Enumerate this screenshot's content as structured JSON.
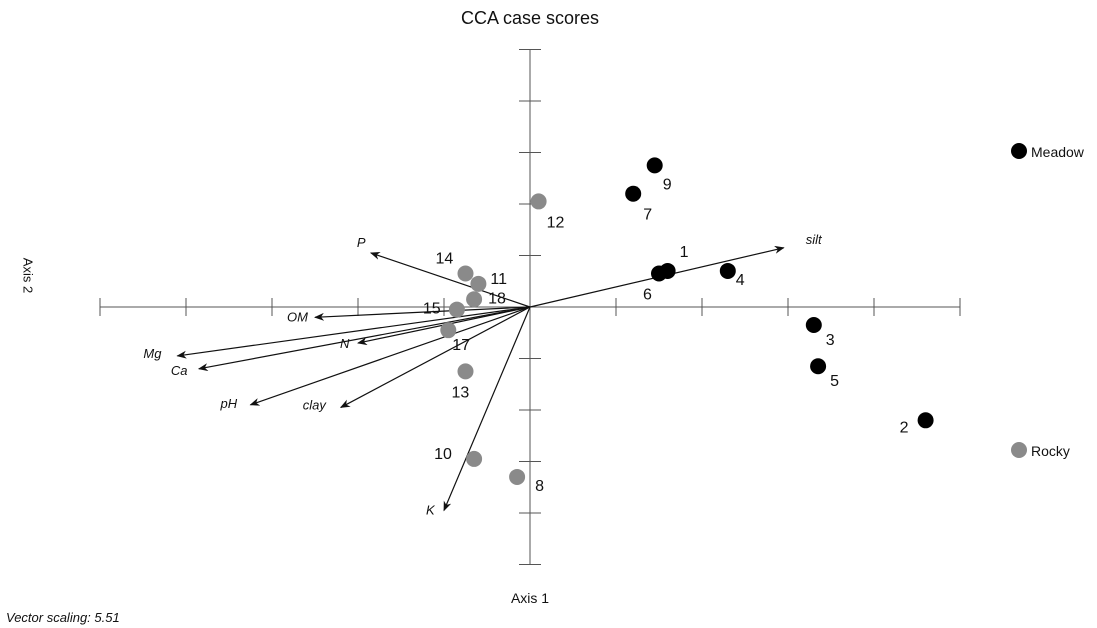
{
  "title": "CCA case scores",
  "x_axis_label": "Axis 1",
  "y_axis_label": "Axis 2",
  "footer": "Vector scaling: 5.51",
  "colors": {
    "meadow": "#000000",
    "rocky": "#8a8a8a",
    "axis": "#555555",
    "arrow": "#111111"
  },
  "chart_data": {
    "type": "scatter",
    "title": "CCA case scores",
    "xlabel": "Axis 1",
    "ylabel": "Axis 2",
    "xlim": [
      -5,
      5
    ],
    "ylim": [
      -5,
      5
    ],
    "grid": false,
    "legend": "right",
    "legend_entries": [
      {
        "name": "Meadow",
        "color": "#000000"
      },
      {
        "name": "Rocky",
        "color": "#8a8a8a"
      }
    ],
    "series": [
      {
        "name": "Meadow",
        "points": [
          {
            "label": "1",
            "x": 1.6,
            "y": 0.7
          },
          {
            "label": "2",
            "x": 4.6,
            "y": -2.2
          },
          {
            "label": "3",
            "x": 3.3,
            "y": -0.35
          },
          {
            "label": "4",
            "x": 2.3,
            "y": 0.7
          },
          {
            "label": "5",
            "x": 3.35,
            "y": -1.15
          },
          {
            "label": "6",
            "x": 1.5,
            "y": 0.65
          },
          {
            "label": "7",
            "x": 1.2,
            "y": 2.2
          },
          {
            "label": "9",
            "x": 1.45,
            "y": 2.75
          }
        ]
      },
      {
        "name": "Rocky",
        "points": [
          {
            "label": "8",
            "x": -0.15,
            "y": -3.3
          },
          {
            "label": "10",
            "x": -0.65,
            "y": -2.95
          },
          {
            "label": "11",
            "x": -0.6,
            "y": 0.45
          },
          {
            "label": "12",
            "x": 0.1,
            "y": 2.05
          },
          {
            "label": "13",
            "x": -0.75,
            "y": -1.25
          },
          {
            "label": "14",
            "x": -0.75,
            "y": 0.65
          },
          {
            "label": "15",
            "x": -0.85,
            "y": -0.05
          },
          {
            "label": "17",
            "x": -0.95,
            "y": -0.45
          },
          {
            "label": "18",
            "x": -0.65,
            "y": 0.15
          }
        ]
      }
    ],
    "vectors": [
      {
        "label": "silt",
        "x": 2.95,
        "y": 1.15
      },
      {
        "label": "P",
        "x": -1.85,
        "y": 1.05
      },
      {
        "label": "OM",
        "x": -2.5,
        "y": -0.2
      },
      {
        "label": "N",
        "x": -2.0,
        "y": -0.7
      },
      {
        "label": "Mg",
        "x": -4.1,
        "y": -0.95
      },
      {
        "label": "Ca",
        "x": -3.85,
        "y": -1.2
      },
      {
        "label": "pH",
        "x": -3.25,
        "y": -1.9
      },
      {
        "label": "clay",
        "x": -2.2,
        "y": -1.95
      },
      {
        "label": "K",
        "x": -1.0,
        "y": -3.95
      }
    ]
  }
}
